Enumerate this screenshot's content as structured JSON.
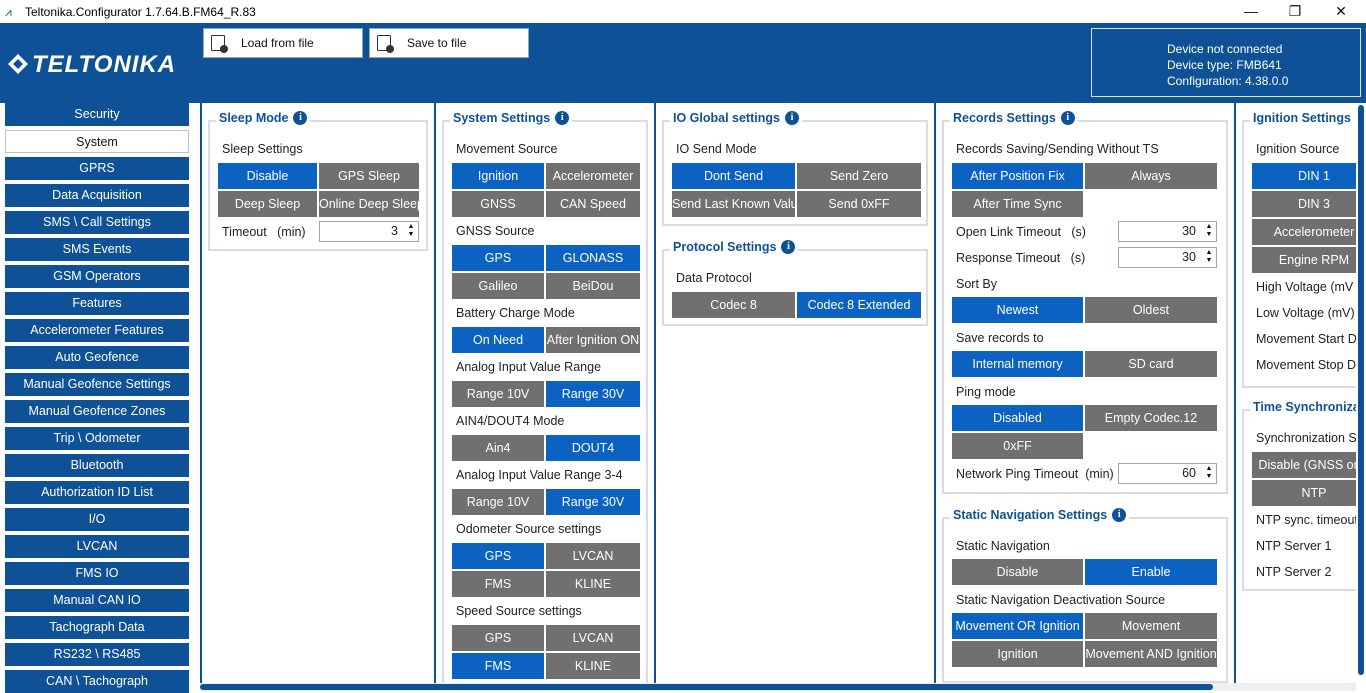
{
  "window": {
    "title": "Teltonika.Configurator 1.7.64.B.FM64_R.83",
    "minimize": "—",
    "maximize": "❐",
    "close": "✕"
  },
  "header": {
    "logo_text": "TELTONIKA",
    "load_button": "Load from file",
    "save_button": "Save to file",
    "device_status": "Device not connected",
    "device_type": "Device type: FMB641",
    "configuration": "Configuration: 4.38.0.0"
  },
  "sidebar": {
    "items": [
      "Security",
      "System",
      "GPRS",
      "Data Acquisition",
      "SMS \\ Call Settings",
      "SMS Events",
      "GSM Operators",
      "Features",
      "Accelerometer Features",
      "Auto Geofence",
      "Manual Geofence Settings",
      "Manual Geofence Zones",
      "Trip \\ Odometer",
      "Bluetooth",
      "Authorization ID List",
      "I/O",
      "LVCAN",
      "FMS IO",
      "Manual CAN IO",
      "Tachograph Data",
      "RS232 \\ RS485",
      "CAN \\ Tachograph"
    ],
    "active": "System"
  },
  "sleep": {
    "title": "Sleep Mode",
    "sub": "Sleep Settings",
    "opts": [
      "Disable",
      "GPS Sleep",
      "Deep Sleep",
      "Online Deep Sleep"
    ],
    "timeout_label": "Timeout",
    "timeout_unit": "(min)",
    "timeout_value": "3"
  },
  "system": {
    "title": "System Settings",
    "movement": "Movement Source",
    "movement_opts": [
      "Ignition",
      "Accelerometer",
      "GNSS",
      "CAN Speed"
    ],
    "gnss": "GNSS Source",
    "gnss_opts": [
      "GPS",
      "GLONASS",
      "Galileo",
      "BeiDou"
    ],
    "battery": "Battery Charge Mode",
    "battery_opts": [
      "On Need",
      "After Ignition ON"
    ],
    "analog": "Analog Input Value Range",
    "analog_opts": [
      "Range 10V",
      "Range 30V"
    ],
    "ain4": "AIN4/DOUT4 Mode",
    "ain4_opts": [
      "Ain4",
      "DOUT4"
    ],
    "analog34": "Analog Input Value Range 3-4",
    "analog34_opts": [
      "Range 10V",
      "Range 30V"
    ],
    "odometer": "Odometer Source settings",
    "odometer_opts": [
      "GPS",
      "LVCAN",
      "FMS",
      "KLINE"
    ],
    "speed": "Speed Source settings",
    "speed_opts": [
      "GPS",
      "LVCAN",
      "FMS",
      "KLINE"
    ]
  },
  "io": {
    "title": "IO Global settings",
    "sub": "IO Send Mode",
    "opts": [
      "Dont Send",
      "Send Zero",
      "Send Last Known Value",
      "Send 0xFF"
    ]
  },
  "protocol": {
    "title": "Protocol Settings",
    "sub": "Data Protocol",
    "opts": [
      "Codec 8",
      "Codec 8 Extended"
    ]
  },
  "records": {
    "title": "Records Settings",
    "saving": "Records Saving/Sending Without TS",
    "saving_opts": [
      "After Position Fix",
      "Always",
      "After Time Sync"
    ],
    "open_link": "Open Link Timeout",
    "open_link_unit": "(s)",
    "open_link_value": "30",
    "response": "Response Timeout",
    "response_unit": "(s)",
    "response_value": "30",
    "sort": "Sort By",
    "sort_opts": [
      "Newest",
      "Oldest"
    ],
    "save_to": "Save records to",
    "save_opts": [
      "Internal memory",
      "SD card"
    ],
    "ping": "Ping mode",
    "ping_opts": [
      "Disabled",
      "Empty Codec.12",
      "0xFF"
    ],
    "net_ping": "Network Ping Timeout",
    "net_ping_unit": "(min)",
    "net_ping_value": "60"
  },
  "static_nav": {
    "title": "Static Navigation Settings",
    "sub": "Static Navigation",
    "opts": [
      "Disable",
      "Enable"
    ],
    "deact": "Static Navigation Deactivation Source",
    "deact_opts": [
      "Movement OR Ignition",
      "Movement",
      "Ignition",
      "Movement AND Ignition"
    ]
  },
  "ignition": {
    "title": "Ignition Settings",
    "sub": "Ignition Source",
    "opts": [
      "DIN 1",
      "DIN 3",
      "Accelerometer",
      "Engine RPM"
    ],
    "high": "High Voltage  (mV",
    "low": "Low Voltage  (mV)",
    "move_start": "Movement Start De",
    "move_stop": "Movement Stop De"
  },
  "timesync": {
    "title": "Time Synchronizat",
    "sub": "Synchronization Se",
    "opts": [
      "Disable (GNSS only",
      "NTP"
    ],
    "ntp_timeout": "NTP sync. timeout",
    "ntp1": "NTP Server 1",
    "ntp2": "NTP Server 2"
  },
  "colors": {
    "brand": "#0e5197",
    "selected": "#0b62c0",
    "unselected": "#707070"
  }
}
